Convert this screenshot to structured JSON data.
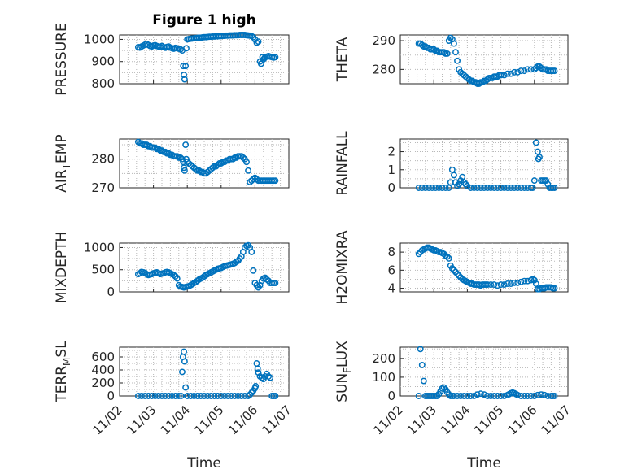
{
  "figure": {
    "title": "Figure 1 high",
    "marker_color": "#0072bd",
    "x_tick_labels": [
      "11/02",
      "11/03",
      "11/04",
      "11/05",
      "11/06",
      "11/07"
    ],
    "x_axis_label": "Time"
  },
  "chart_data": [
    {
      "type": "scatter",
      "id": "pressure",
      "title": "Figure 1 high",
      "ylabel": "PRESSURE",
      "ylim": [
        800,
        1020
      ],
      "yticks": [
        800,
        900,
        1000
      ],
      "xlim": [
        0,
        5
      ],
      "grid": "on",
      "show_xticks": false,
      "xlabel": "",
      "x": [
        0.55,
        0.6,
        0.65,
        0.7,
        0.75,
        0.8,
        0.85,
        0.9,
        0.95,
        1.0,
        1.05,
        1.1,
        1.15,
        1.2,
        1.25,
        1.3,
        1.35,
        1.4,
        1.45,
        1.5,
        1.55,
        1.6,
        1.65,
        1.7,
        1.75,
        1.8,
        1.85,
        1.88,
        1.9,
        1.92,
        1.95,
        1.97,
        2.0,
        2.05,
        2.1,
        2.15,
        2.2,
        2.25,
        2.3,
        2.35,
        2.4,
        2.45,
        2.5,
        2.55,
        2.6,
        2.65,
        2.7,
        2.75,
        2.8,
        2.85,
        2.9,
        2.95,
        3.0,
        3.05,
        3.1,
        3.15,
        3.2,
        3.25,
        3.3,
        3.35,
        3.4,
        3.45,
        3.5,
        3.55,
        3.6,
        3.65,
        3.7,
        3.75,
        3.8,
        3.85,
        3.9,
        3.95,
        4.0,
        4.05,
        4.1,
        4.15,
        4.18,
        4.22,
        4.25,
        4.28,
        4.3,
        4.35,
        4.4,
        4.45,
        4.5,
        4.55,
        4.6
      ],
      "y": [
        965,
        963,
        968,
        972,
        976,
        980,
        975,
        970,
        968,
        972,
        974,
        970,
        968,
        966,
        970,
        965,
        962,
        966,
        968,
        963,
        960,
        958,
        962,
        960,
        958,
        955,
        950,
        880,
        840,
        820,
        880,
        960,
        1000,
        1002,
        1003,
        1004,
        1005,
        1006,
        1007,
        1008,
        1008,
        1009,
        1010,
        1010,
        1011,
        1012,
        1012,
        1013,
        1013,
        1014,
        1014,
        1015,
        1015,
        1016,
        1016,
        1017,
        1017,
        1018,
        1018,
        1018,
        1019,
        1019,
        1019,
        1020,
        1020,
        1020,
        1020,
        1019,
        1018,
        1017,
        1015,
        1010,
        1000,
        985,
        990,
        900,
        890,
        920,
        910,
        915,
        920,
        922,
        925,
        922,
        920,
        918,
        920
      ]
    },
    {
      "type": "scatter",
      "id": "theta",
      "title": "",
      "ylabel": "THETA",
      "ylim": [
        275,
        292
      ],
      "yticks": [
        280,
        290
      ],
      "xlim": [
        0,
        5
      ],
      "grid": "on",
      "show_xticks": false,
      "xlabel": "",
      "x": [
        0.55,
        0.6,
        0.65,
        0.7,
        0.75,
        0.8,
        0.85,
        0.9,
        0.95,
        1.0,
        1.05,
        1.1,
        1.15,
        1.2,
        1.25,
        1.3,
        1.35,
        1.4,
        1.45,
        1.5,
        1.55,
        1.6,
        1.65,
        1.7,
        1.75,
        1.8,
        1.85,
        1.9,
        1.95,
        2.0,
        2.05,
        2.1,
        2.15,
        2.2,
        2.25,
        2.3,
        2.35,
        2.4,
        2.45,
        2.5,
        2.55,
        2.6,
        2.65,
        2.7,
        2.75,
        2.8,
        2.85,
        2.9,
        2.95,
        3.0,
        3.1,
        3.2,
        3.3,
        3.4,
        3.5,
        3.6,
        3.7,
        3.8,
        3.9,
        4.0,
        4.05,
        4.1,
        4.15,
        4.2,
        4.25,
        4.3,
        4.35,
        4.4,
        4.45,
        4.5,
        4.55,
        4.6
      ],
      "y": [
        289,
        289,
        288.5,
        288,
        288,
        287.5,
        287.5,
        287,
        287,
        287,
        286.5,
        286.5,
        286,
        286,
        286,
        286,
        285.5,
        285.5,
        290,
        291,
        290.5,
        289,
        286,
        283,
        280,
        279,
        278.5,
        278,
        277.5,
        277,
        276.5,
        276,
        276,
        275.5,
        275.5,
        275,
        275,
        275.5,
        275.5,
        276,
        276,
        276.5,
        277,
        277,
        277,
        277.5,
        277.5,
        277.5,
        278,
        278,
        278,
        278.5,
        278.5,
        279,
        279,
        279.5,
        279.5,
        280,
        280,
        280,
        280.5,
        281,
        281,
        280.5,
        280,
        280,
        280,
        279.5,
        279.5,
        279.5,
        279.5,
        279.5
      ]
    },
    {
      "type": "scatter",
      "id": "air-temp",
      "title": "",
      "ylabel": "AIR_TEMP",
      "ylim": [
        270,
        287
      ],
      "yticks": [
        270,
        280
      ],
      "xlim": [
        0,
        5
      ],
      "grid": "on",
      "show_xticks": false,
      "xlabel": "",
      "x": [
        0.55,
        0.6,
        0.65,
        0.7,
        0.75,
        0.8,
        0.85,
        0.9,
        0.95,
        1.0,
        1.05,
        1.1,
        1.15,
        1.2,
        1.25,
        1.3,
        1.35,
        1.4,
        1.45,
        1.5,
        1.55,
        1.6,
        1.65,
        1.7,
        1.75,
        1.8,
        1.85,
        1.88,
        1.9,
        1.92,
        1.95,
        1.97,
        2.0,
        2.05,
        2.1,
        2.15,
        2.2,
        2.25,
        2.3,
        2.35,
        2.4,
        2.45,
        2.5,
        2.55,
        2.6,
        2.65,
        2.7,
        2.75,
        2.8,
        2.85,
        2.9,
        2.95,
        3.0,
        3.05,
        3.1,
        3.15,
        3.2,
        3.25,
        3.3,
        3.35,
        3.4,
        3.45,
        3.5,
        3.55,
        3.6,
        3.65,
        3.7,
        3.75,
        3.8,
        3.85,
        3.9,
        3.95,
        4.0,
        4.05,
        4.1,
        4.15,
        4.2,
        4.25,
        4.3,
        4.35,
        4.4,
        4.45,
        4.5,
        4.55,
        4.6
      ],
      "y": [
        286,
        285.5,
        285.5,
        285,
        285,
        285,
        284.5,
        284.5,
        284,
        284,
        284,
        283.5,
        283.5,
        283,
        283,
        282.5,
        282.5,
        282,
        282,
        281.5,
        281.5,
        281,
        281,
        281,
        280.5,
        280.5,
        280,
        279,
        277,
        276,
        285,
        280,
        279,
        278.5,
        278,
        277.5,
        277,
        276.5,
        276,
        276,
        275.5,
        275.5,
        275,
        275,
        275.5,
        276,
        276.5,
        277,
        277.5,
        277.5,
        278,
        278.5,
        278.5,
        279,
        279,
        279.5,
        279.5,
        280,
        280,
        280,
        280.5,
        280.5,
        281,
        281,
        281,
        280.5,
        280,
        279,
        276,
        272,
        272.5,
        273,
        273.5,
        273,
        272.5,
        272.5,
        272.5,
        272.5,
        272.5,
        272.5,
        272.5,
        272.5,
        272.5,
        272.5,
        272.5
      ]
    },
    {
      "type": "scatter",
      "id": "rainfall",
      "title": "",
      "ylabel": "RAINFALL",
      "ylim": [
        0,
        2.7
      ],
      "yticks": [
        0,
        1,
        2
      ],
      "xlim": [
        0,
        5
      ],
      "grid": "on",
      "show_xticks": false,
      "xlabel": "",
      "x": [
        0.55,
        0.65,
        0.75,
        0.85,
        0.95,
        1.05,
        1.15,
        1.25,
        1.35,
        1.45,
        1.5,
        1.55,
        1.6,
        1.65,
        1.7,
        1.75,
        1.8,
        1.85,
        1.9,
        1.95,
        2.0,
        2.1,
        2.2,
        2.3,
        2.4,
        2.5,
        2.6,
        2.7,
        2.8,
        2.9,
        3.0,
        3.1,
        3.2,
        3.3,
        3.4,
        3.5,
        3.6,
        3.7,
        3.8,
        3.9,
        3.95,
        4.0,
        4.05,
        4.1,
        4.12,
        4.15,
        4.2,
        4.25,
        4.3,
        4.35,
        4.4,
        4.45,
        4.5,
        4.55,
        4.6
      ],
      "y": [
        0,
        0,
        0,
        0,
        0,
        0,
        0,
        0,
        0,
        0,
        0.3,
        1.0,
        0.7,
        0.3,
        0.1,
        0.2,
        0.4,
        0.6,
        0.3,
        0.2,
        0.1,
        0,
        0,
        0,
        0,
        0,
        0,
        0,
        0,
        0,
        0,
        0,
        0,
        0,
        0,
        0,
        0,
        0,
        0,
        0,
        0,
        0.4,
        2.5,
        2.0,
        1.6,
        1.7,
        0.4,
        0.4,
        0.4,
        0.4,
        0.2,
        0,
        0,
        0,
        0
      ]
    },
    {
      "type": "scatter",
      "id": "mixdepth",
      "title": "",
      "ylabel": "MIXDEPTH",
      "ylim": [
        0,
        1100
      ],
      "yticks": [
        0,
        500,
        1000
      ],
      "xlim": [
        0,
        5
      ],
      "grid": "on",
      "show_xticks": false,
      "xlabel": "",
      "x": [
        0.55,
        0.6,
        0.65,
        0.7,
        0.75,
        0.8,
        0.85,
        0.9,
        0.95,
        1.0,
        1.05,
        1.1,
        1.15,
        1.2,
        1.25,
        1.3,
        1.35,
        1.4,
        1.45,
        1.5,
        1.55,
        1.6,
        1.65,
        1.7,
        1.75,
        1.8,
        1.85,
        1.9,
        1.95,
        2.0,
        2.05,
        2.1,
        2.15,
        2.2,
        2.25,
        2.3,
        2.35,
        2.4,
        2.45,
        2.5,
        2.55,
        2.6,
        2.65,
        2.7,
        2.75,
        2.8,
        2.85,
        2.9,
        2.95,
        3.0,
        3.05,
        3.1,
        3.15,
        3.2,
        3.25,
        3.3,
        3.35,
        3.4,
        3.45,
        3.5,
        3.55,
        3.6,
        3.65,
        3.7,
        3.75,
        3.8,
        3.85,
        3.9,
        3.95,
        4.0,
        4.05,
        4.1,
        4.15,
        4.2,
        4.25,
        4.3,
        4.35,
        4.4,
        4.45,
        4.5,
        4.55,
        4.6
      ],
      "y": [
        400,
        420,
        450,
        440,
        430,
        400,
        380,
        390,
        400,
        420,
        430,
        440,
        420,
        400,
        410,
        420,
        440,
        450,
        440,
        420,
        400,
        380,
        350,
        300,
        150,
        120,
        110,
        100,
        110,
        120,
        130,
        150,
        170,
        200,
        220,
        250,
        280,
        300,
        320,
        350,
        380,
        400,
        420,
        440,
        460,
        480,
        500,
        520,
        530,
        540,
        560,
        580,
        590,
        600,
        610,
        620,
        630,
        650,
        680,
        700,
        750,
        800,
        900,
        1000,
        1040,
        1050,
        1000,
        900,
        480,
        200,
        150,
        100,
        150,
        250,
        300,
        320,
        280,
        250,
        200,
        200,
        200,
        200
      ]
    },
    {
      "type": "scatter",
      "id": "h2omixra",
      "title": "",
      "ylabel": "H2OMIXRA",
      "ylim": [
        3.6,
        9
      ],
      "yticks": [
        4,
        6,
        8
      ],
      "xlim": [
        0,
        5
      ],
      "grid": "on",
      "show_xticks": false,
      "xlabel": "",
      "x": [
        0.55,
        0.6,
        0.65,
        0.7,
        0.75,
        0.8,
        0.85,
        0.9,
        0.95,
        1.0,
        1.05,
        1.1,
        1.15,
        1.2,
        1.25,
        1.3,
        1.35,
        1.4,
        1.45,
        1.5,
        1.55,
        1.6,
        1.65,
        1.7,
        1.75,
        1.8,
        1.85,
        1.9,
        1.95,
        2.0,
        2.05,
        2.1,
        2.15,
        2.2,
        2.25,
        2.3,
        2.35,
        2.4,
        2.45,
        2.5,
        2.55,
        2.6,
        2.7,
        2.8,
        2.9,
        3.0,
        3.1,
        3.2,
        3.3,
        3.4,
        3.5,
        3.6,
        3.7,
        3.8,
        3.9,
        3.95,
        4.0,
        4.05,
        4.1,
        4.15,
        4.2,
        4.25,
        4.3,
        4.35,
        4.4,
        4.45,
        4.5,
        4.55,
        4.6
      ],
      "y": [
        7.8,
        8.0,
        8.2,
        8.3,
        8.4,
        8.5,
        8.5,
        8.4,
        8.3,
        8.2,
        8.2,
        8.1,
        8.0,
        8.0,
        7.9,
        7.8,
        7.6,
        7.5,
        7.3,
        6.5,
        6.2,
        6.0,
        5.8,
        5.6,
        5.4,
        5.2,
        5.0,
        4.9,
        4.8,
        4.7,
        4.6,
        4.5,
        4.5,
        4.4,
        4.4,
        4.4,
        4.4,
        4.3,
        4.4,
        4.4,
        4.4,
        4.4,
        4.4,
        4.4,
        4.3,
        4.4,
        4.4,
        4.5,
        4.5,
        4.6,
        4.6,
        4.7,
        4.8,
        4.8,
        4.9,
        5.0,
        4.9,
        4.5,
        3.9,
        3.9,
        4.0,
        4.0,
        4.0,
        4.1,
        4.1,
        4.1,
        4.1,
        4.0,
        4.0
      ]
    },
    {
      "type": "scatter",
      "id": "terr-msl",
      "title": "",
      "ylabel": "TERR_MSL",
      "ylim": [
        0,
        750
      ],
      "yticks": [
        0,
        200,
        400,
        600
      ],
      "xlim": [
        0,
        5
      ],
      "grid": "on",
      "show_xticks": true,
      "xlabel": "Time",
      "x": [
        0.55,
        0.65,
        0.75,
        0.85,
        0.95,
        1.05,
        1.15,
        1.25,
        1.35,
        1.45,
        1.55,
        1.65,
        1.75,
        1.82,
        1.85,
        1.87,
        1.9,
        1.92,
        1.95,
        2.0,
        2.1,
        2.2,
        2.3,
        2.4,
        2.5,
        2.6,
        2.7,
        2.8,
        2.9,
        3.0,
        3.1,
        3.2,
        3.3,
        3.4,
        3.5,
        3.6,
        3.7,
        3.8,
        3.85,
        3.9,
        3.95,
        4.0,
        4.02,
        4.05,
        4.08,
        4.1,
        4.15,
        4.2,
        4.25,
        4.3,
        4.35,
        4.4,
        4.45,
        4.5,
        4.55,
        4.6
      ],
      "y": [
        0,
        0,
        0,
        0,
        0,
        0,
        0,
        0,
        0,
        0,
        0,
        0,
        0,
        0,
        370,
        600,
        680,
        530,
        130,
        0,
        0,
        0,
        0,
        0,
        0,
        0,
        0,
        0,
        0,
        0,
        0,
        0,
        0,
        0,
        0,
        0,
        0,
        0,
        20,
        50,
        80,
        120,
        150,
        500,
        420,
        360,
        300,
        280,
        260,
        300,
        340,
        300,
        280,
        0,
        0,
        0
      ]
    },
    {
      "type": "scatter",
      "id": "sun-flux",
      "title": "",
      "ylabel": "SUN_FLUX",
      "ylim": [
        0,
        260
      ],
      "yticks": [
        0,
        100,
        200
      ],
      "xlim": [
        0,
        5
      ],
      "grid": "on",
      "show_xticks": true,
      "xlabel": "Time",
      "x": [
        0.55,
        0.6,
        0.65,
        0.7,
        0.75,
        0.8,
        0.85,
        0.9,
        0.95,
        1.0,
        1.05,
        1.1,
        1.15,
        1.2,
        1.25,
        1.3,
        1.35,
        1.4,
        1.45,
        1.5,
        1.55,
        1.6,
        1.7,
        1.8,
        1.9,
        2.0,
        2.1,
        2.2,
        2.3,
        2.4,
        2.5,
        2.6,
        2.7,
        2.8,
        2.9,
        3.0,
        3.1,
        3.2,
        3.25,
        3.3,
        3.35,
        3.4,
        3.45,
        3.5,
        3.6,
        3.7,
        3.8,
        3.9,
        4.0,
        4.1,
        4.2,
        4.3,
        4.4,
        4.5,
        4.55,
        4.6
      ],
      "y": [
        0,
        250,
        165,
        80,
        0,
        0,
        0,
        0,
        0,
        0,
        0,
        0,
        10,
        25,
        40,
        45,
        35,
        20,
        8,
        0,
        0,
        0,
        0,
        0,
        0,
        0,
        0,
        0,
        8,
        12,
        8,
        0,
        0,
        0,
        0,
        0,
        0,
        5,
        10,
        15,
        18,
        15,
        10,
        5,
        0,
        0,
        0,
        0,
        0,
        5,
        8,
        5,
        0,
        0,
        0,
        0
      ]
    }
  ]
}
